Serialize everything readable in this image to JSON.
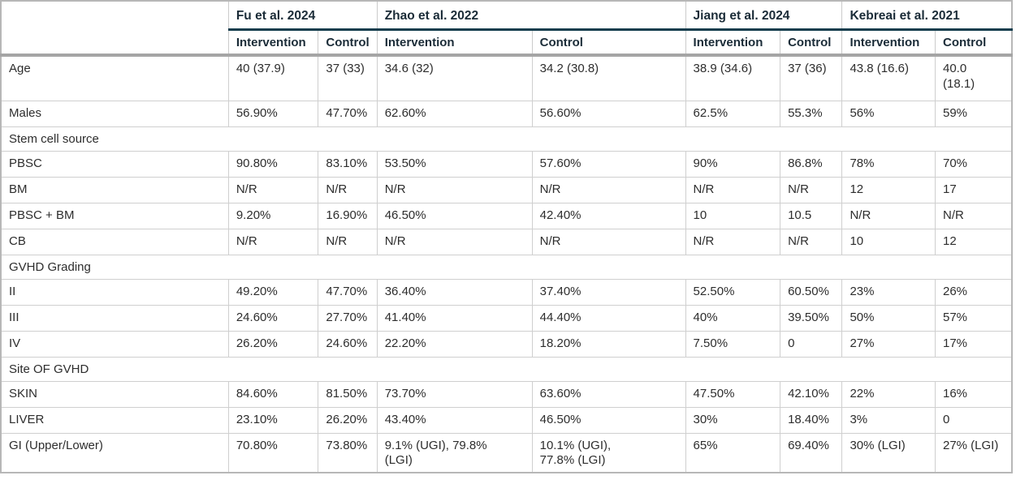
{
  "table": {
    "corner_label": "",
    "studies": [
      {
        "name": "Fu et al. 2024"
      },
      {
        "name": "Zhao et al. 2022"
      },
      {
        "name": "Jiang et al. 2024"
      },
      {
        "name": "Kebreai et al. 2021"
      }
    ],
    "subheaders": [
      "Intervention",
      "Control",
      "Intervention",
      "Control",
      "Intervention",
      "Control",
      "Intervention",
      "Control"
    ],
    "rows": [
      {
        "type": "data",
        "label": "Age",
        "values": [
          "40 (37.9)",
          "37 (33)",
          "34.6 (32)",
          "34.2 (30.8)",
          "38.9 (34.6)",
          "37 (36)",
          "43.8 (16.6)",
          "40.0 (18.1)"
        ]
      },
      {
        "type": "data",
        "label": "Males",
        "values": [
          "56.90%",
          "47.70%",
          "62.60%",
          "56.60%",
          "62.5%",
          "55.3%",
          "56%",
          "59%"
        ]
      },
      {
        "type": "section",
        "label": "Stem cell source"
      },
      {
        "type": "data",
        "label": "PBSC",
        "values": [
          "90.80%",
          "83.10%",
          "53.50%",
          "57.60%",
          "90%",
          "86.8%",
          "78%",
          "70%"
        ]
      },
      {
        "type": "data",
        "label": "BM",
        "values": [
          "N/R",
          "N/R",
          "N/R",
          "N/R",
          "N/R",
          "N/R",
          "12",
          "17"
        ]
      },
      {
        "type": "data",
        "label": "PBSC + BM",
        "values": [
          "9.20%",
          "16.90%",
          "46.50%",
          "42.40%",
          "10",
          "10.5",
          "N/R",
          "N/R"
        ]
      },
      {
        "type": "data",
        "label": "CB",
        "values": [
          "N/R",
          "N/R",
          "N/R",
          "N/R",
          "N/R",
          "N/R",
          "10",
          "12"
        ]
      },
      {
        "type": "section",
        "label": "GVHD Grading"
      },
      {
        "type": "data",
        "label": "II",
        "values": [
          "49.20%",
          "47.70%",
          "36.40%",
          "37.40%",
          "52.50%",
          "60.50%",
          "23%",
          "26%"
        ]
      },
      {
        "type": "data",
        "label": "III",
        "values": [
          "24.60%",
          "27.70%",
          "41.40%",
          "44.40%",
          "40%",
          "39.50%",
          "50%",
          "57%"
        ]
      },
      {
        "type": "data",
        "label": "IV",
        "values": [
          "26.20%",
          "24.60%",
          "22.20%",
          "18.20%",
          "7.50%",
          "0",
          "27%",
          "17%"
        ]
      },
      {
        "type": "section",
        "label": "Site OF GVHD"
      },
      {
        "type": "data",
        "label": "SKIN",
        "values": [
          "84.60%",
          "81.50%",
          "73.70%",
          "63.60%",
          "47.50%",
          "42.10%",
          "22%",
          "16%"
        ]
      },
      {
        "type": "data",
        "label": "LIVER",
        "values": [
          "23.10%",
          "26.20%",
          "43.40%",
          "46.50%",
          "30%",
          "18.40%",
          "3%",
          "0"
        ]
      },
      {
        "type": "data",
        "label": "GI (Upper/Lower)",
        "values": [
          "70.80%",
          "73.80%",
          "9.1% (UGI), 79.8% (LGI)",
          "10.1% (UGI), 77.8% (LGI)",
          "65%",
          "69.40%",
          "30% (LGI)",
          "27% (LGI)"
        ]
      }
    ],
    "colors": {
      "header_text": "#1b2c38",
      "header_underline": "#113c4c",
      "thick_divider": "#a5a5a5",
      "grid_border": "#cfcfcf",
      "outer_border": "#b7b7b7",
      "body_text": "#2d2d2d"
    }
  }
}
